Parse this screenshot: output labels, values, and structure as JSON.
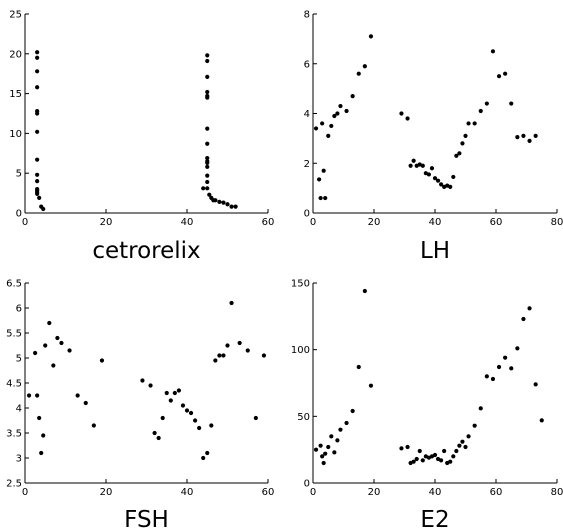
{
  "chart_data": [
    {
      "type": "scatter",
      "title": "cetrorelix",
      "xlim": [
        0,
        60
      ],
      "ylim": [
        0,
        25
      ],
      "xticks": [
        0,
        20,
        40,
        60
      ],
      "yticks": [
        0,
        5,
        10,
        15,
        20,
        25
      ],
      "x": [
        3,
        3,
        3,
        3,
        3,
        3,
        3,
        3,
        3,
        3,
        3,
        3,
        3,
        3,
        3.5,
        4,
        4.5,
        44,
        45,
        45,
        45,
        45,
        45,
        45,
        45,
        45,
        45,
        45,
        45,
        45,
        45,
        45,
        45,
        45.5,
        46,
        46.5,
        47,
        48,
        49,
        50,
        51,
        52
      ],
      "y": [
        20.2,
        19.5,
        17.8,
        15.8,
        12.8,
        12.5,
        10.2,
        6.7,
        4.8,
        4,
        3,
        2.8,
        2.6,
        2.4,
        1.9,
        0.8,
        0.5,
        3.1,
        19.8,
        19.1,
        17.1,
        15.2,
        14.7,
        14.5,
        10.6,
        8.7,
        6.9,
        6.5,
        6.3,
        5.8,
        4.7,
        3.9,
        3.1,
        2.3,
        1.9,
        1.6,
        1.6,
        1.4,
        1.3,
        1.1,
        0.8,
        0.8
      ]
    },
    {
      "type": "scatter",
      "title": "LH",
      "xlim": [
        0,
        80
      ],
      "ylim": [
        0,
        8
      ],
      "xticks": [
        0,
        20,
        40,
        60,
        80
      ],
      "yticks": [
        0,
        2,
        4,
        6,
        8
      ],
      "x": [
        1,
        2,
        2.5,
        3,
        3.5,
        4,
        5,
        6,
        7,
        8,
        9,
        11,
        13,
        15,
        17,
        19,
        29,
        31,
        32,
        33,
        34,
        35,
        36,
        37,
        38,
        39,
        40,
        41,
        42,
        43,
        44,
        45,
        46,
        47,
        48,
        49,
        50,
        51,
        53,
        55,
        57,
        59,
        61,
        63,
        65,
        67,
        69,
        71,
        73
      ],
      "y": [
        3.4,
        1.35,
        0.6,
        3.6,
        1.7,
        0.6,
        3.1,
        3.5,
        3.9,
        4.0,
        4.3,
        4.1,
        4.7,
        5.6,
        5.9,
        7.1,
        4.0,
        3.8,
        1.9,
        2.1,
        1.9,
        1.95,
        1.9,
        1.6,
        1.55,
        1.8,
        1.4,
        1.3,
        1.15,
        1.05,
        1.1,
        1.05,
        1.45,
        2.3,
        2.4,
        2.8,
        3.1,
        3.6,
        3.6,
        4.1,
        4.4,
        6.5,
        5.5,
        5.6,
        4.4,
        3.05,
        3.1,
        2.9,
        3.1
      ]
    },
    {
      "type": "scatter",
      "title": "FSH",
      "xlim": [
        0,
        60
      ],
      "ylim": [
        2.5,
        6.5
      ],
      "xticks": [
        0,
        20,
        40,
        60
      ],
      "yticks": [
        2.5,
        3,
        3.5,
        4,
        4.5,
        5,
        5.5,
        6,
        6.5
      ],
      "x": [
        1,
        2.5,
        3,
        3.5,
        4,
        4.5,
        5,
        6,
        7,
        8,
        9,
        11,
        13,
        15,
        17,
        19,
        29,
        31,
        32,
        33,
        34,
        35,
        36,
        37,
        38,
        39,
        40,
        41,
        42,
        43,
        44,
        45,
        46,
        47,
        48,
        49,
        50,
        51,
        53,
        55,
        57,
        59
      ],
      "y": [
        4.25,
        5.1,
        4.25,
        3.8,
        3.1,
        3.45,
        5.25,
        5.7,
        4.85,
        5.4,
        5.3,
        5.15,
        4.25,
        4.1,
        3.65,
        4.95,
        4.55,
        4.45,
        3.5,
        3.4,
        3.8,
        4.3,
        4.15,
        4.3,
        4.35,
        4.05,
        3.95,
        3.9,
        3.75,
        3.6,
        3.0,
        3.1,
        3.65,
        4.95,
        5.05,
        5.05,
        5.25,
        6.1,
        5.3,
        5.15,
        3.8,
        5.05
      ]
    },
    {
      "type": "scatter",
      "title": "E2",
      "xlim": [
        0,
        80
      ],
      "ylim": [
        0,
        150
      ],
      "xticks": [
        0,
        20,
        40,
        60,
        80
      ],
      "yticks": [
        0,
        50,
        100,
        150
      ],
      "x": [
        1,
        2.5,
        3,
        3.5,
        4,
        5,
        6,
        7,
        8,
        9,
        11,
        13,
        15,
        17,
        19,
        29,
        31,
        32,
        33,
        34,
        35,
        36,
        37,
        38,
        39,
        40,
        41,
        42,
        43,
        44,
        45,
        46,
        47,
        48,
        49,
        50,
        51,
        53,
        55,
        57,
        59,
        61,
        63,
        65,
        67,
        69,
        71,
        73,
        75
      ],
      "y": [
        25,
        28,
        20,
        15,
        22,
        27,
        35,
        23,
        32,
        40,
        45,
        54,
        87,
        144,
        73,
        26,
        27,
        15,
        16,
        18,
        24,
        17,
        20,
        19,
        20,
        21,
        18,
        17,
        24,
        15,
        16,
        20,
        24,
        28,
        31,
        27,
        35,
        43,
        56,
        80,
        78,
        87,
        94,
        86,
        101,
        123,
        131,
        74,
        47
      ]
    }
  ]
}
